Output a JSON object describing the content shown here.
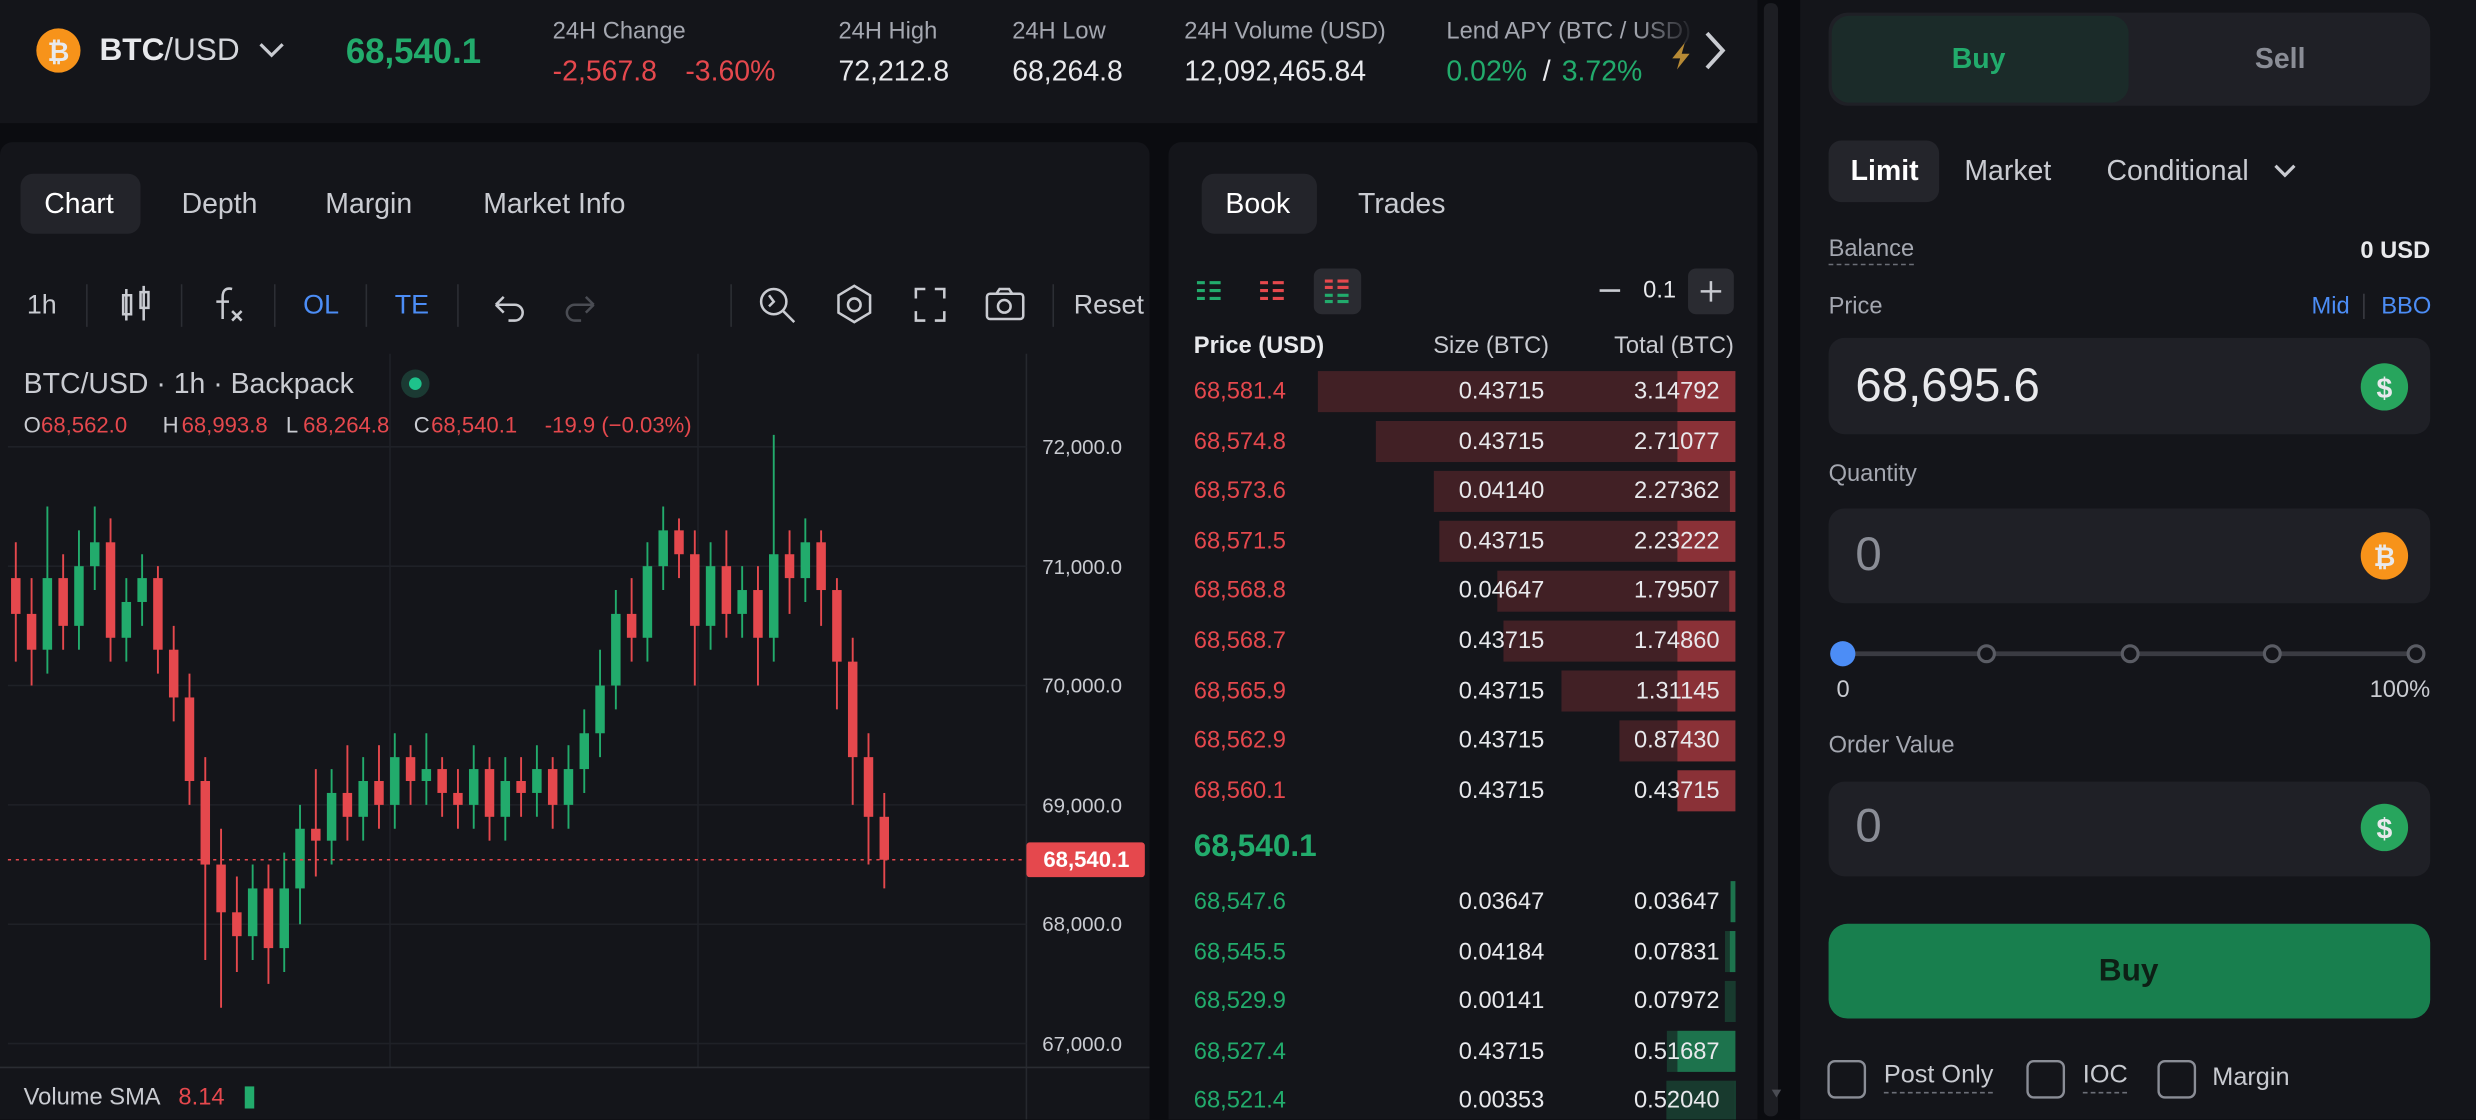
{
  "header": {
    "base": "BTC",
    "quote": "/USD",
    "last_price": "68,540.1",
    "change": {
      "label": "24H Change",
      "value": "-2,567.8",
      "percent": "-3.60%"
    },
    "high": {
      "label": "24H High",
      "value": "72,212.8"
    },
    "low": {
      "label": "24H Low",
      "value": "68,264.8"
    },
    "volume": {
      "label": "24H Volume (USD)",
      "value": "12,092,465.84"
    },
    "lend_apy": {
      "label": "Lend APY (BTC / USD)",
      "btc": "0.02%",
      "separator": "/",
      "usd": "3.72%"
    }
  },
  "chart_panel": {
    "tabs": [
      "Chart",
      "Depth",
      "Margin",
      "Market Info"
    ],
    "active_tab": "Chart",
    "toolbar": {
      "interval": "1h",
      "ol": "OL",
      "te": "TE",
      "reset": "Reset"
    },
    "legend": {
      "title": "BTC/USD · 1h · Backpack",
      "o_label": "O",
      "o": "68,562.0",
      "h_label": "H",
      "h": "68,993.8",
      "l_label": "L",
      "l": "68,264.8",
      "c_label": "C",
      "c": "68,540.1",
      "change": "-19.9 (−0.03%)"
    },
    "volume_sma": {
      "label": "Volume SMA",
      "value": "8.14"
    }
  },
  "chart_data": {
    "type": "candlestick",
    "open": [
      70900,
      70600,
      70300,
      70900,
      70500,
      71000,
      71200,
      70400,
      70700,
      70900,
      70300,
      69900,
      69200,
      68500,
      68100,
      67900,
      68300,
      67800,
      68300,
      68800,
      68700,
      69100,
      68900,
      69200,
      69000,
      69400,
      69200,
      69300,
      69100,
      69000,
      69300,
      68900,
      69200,
      69100,
      69300,
      69000,
      69300,
      69600,
      70000,
      70600,
      70400,
      71000,
      71300,
      71100,
      70500,
      71000,
      70600,
      70800,
      70400,
      71100,
      70900,
      71200,
      70800,
      70200,
      69400,
      68900
    ],
    "high": [
      71200,
      70900,
      71500,
      71100,
      71300,
      71500,
      71400,
      70900,
      71100,
      71000,
      70500,
      70100,
      69400,
      68800,
      68400,
      68500,
      68500,
      68600,
      69000,
      69300,
      69300,
      69500,
      69400,
      69500,
      69600,
      69500,
      69600,
      69400,
      69300,
      69500,
      69400,
      69400,
      69400,
      69500,
      69400,
      69500,
      69800,
      70300,
      70800,
      70900,
      71200,
      71500,
      71400,
      71300,
      71200,
      71300,
      71000,
      71000,
      72100,
      71300,
      71400,
      71300,
      70900,
      70400,
      69600,
      69100
    ],
    "low": [
      70200,
      70000,
      70100,
      70300,
      70300,
      70800,
      70200,
      70200,
      70500,
      70100,
      69700,
      69000,
      67700,
      67300,
      67600,
      67700,
      67500,
      67600,
      68000,
      68400,
      68500,
      68700,
      68700,
      68800,
      68800,
      69000,
      69000,
      68900,
      68800,
      68800,
      68700,
      68700,
      68900,
      68900,
      68800,
      68800,
      69100,
      69400,
      69800,
      70200,
      70200,
      70800,
      70900,
      70000,
      70300,
      70400,
      70400,
      70000,
      70200,
      70600,
      70700,
      70500,
      69800,
      69000,
      68500,
      68300
    ],
    "close": [
      70600,
      70300,
      70900,
      70500,
      71000,
      71200,
      70400,
      70700,
      70900,
      70300,
      69900,
      69200,
      68500,
      68100,
      67900,
      68300,
      67800,
      68300,
      68800,
      68700,
      69100,
      68900,
      69200,
      69000,
      69400,
      69200,
      69300,
      69100,
      69000,
      69300,
      68900,
      69200,
      69100,
      69300,
      69000,
      69300,
      69600,
      70000,
      70600,
      70400,
      71000,
      71300,
      71100,
      70500,
      71000,
      70600,
      70800,
      70400,
      71100,
      70900,
      71200,
      70800,
      70200,
      69400,
      68900,
      68540
    ],
    "ylim": [
      66800,
      72780
    ],
    "yticks": [
      {
        "value": 72000,
        "label": "72,000.0"
      },
      {
        "value": 71000,
        "label": "71,000.0"
      },
      {
        "value": 70000,
        "label": "70,000.0"
      },
      {
        "value": 69000,
        "label": "69,000.0"
      },
      {
        "value": 68000,
        "label": "68,000.0"
      },
      {
        "value": 67000,
        "label": "67,000.0"
      }
    ],
    "last_price": {
      "value": 68540.1,
      "label": "68,540.1"
    },
    "up_color": "#22ab6c",
    "down_color": "#e5484d",
    "grid": true
  },
  "orderbook": {
    "tabs": [
      "Book",
      "Trades"
    ],
    "active_tab": "Book",
    "step": "0.1",
    "columns": [
      "Price (USD)",
      "Size (BTC)",
      "Total (BTC)"
    ],
    "asks": [
      {
        "price": "68,581.4",
        "size": "0.43715",
        "total": "3.14792"
      },
      {
        "price": "68,574.8",
        "size": "0.43715",
        "total": "2.71077"
      },
      {
        "price": "68,573.6",
        "size": "0.04140",
        "total": "2.27362"
      },
      {
        "price": "68,571.5",
        "size": "0.43715",
        "total": "2.23222"
      },
      {
        "price": "68,568.8",
        "size": "0.04647",
        "total": "1.79507"
      },
      {
        "price": "68,568.7",
        "size": "0.43715",
        "total": "1.74860"
      },
      {
        "price": "68,565.9",
        "size": "0.43715",
        "total": "1.31145"
      },
      {
        "price": "68,562.9",
        "size": "0.43715",
        "total": "0.87430"
      },
      {
        "price": "68,560.1",
        "size": "0.43715",
        "total": "0.43715"
      }
    ],
    "mid": "68,540.1",
    "bids": [
      {
        "price": "68,547.6",
        "size": "0.03647",
        "total": "0.03647"
      },
      {
        "price": "68,545.5",
        "size": "0.04184",
        "total": "0.07831"
      },
      {
        "price": "68,529.9",
        "size": "0.00141",
        "total": "0.07972"
      },
      {
        "price": "68,527.4",
        "size": "0.43715",
        "total": "0.51687"
      },
      {
        "price": "68,521.4",
        "size": "0.00353",
        "total": "0.52040"
      }
    ]
  },
  "order_form": {
    "sides": [
      "Buy",
      "Sell"
    ],
    "active_side": "Buy",
    "order_types": [
      "Limit",
      "Market",
      "Conditional"
    ],
    "active_type": "Limit",
    "balance_label": "Balance",
    "balance": "0 USD",
    "price_label": "Price",
    "mid": "Mid",
    "bbo": "BBO",
    "price": "68,695.6",
    "quantity_label": "Quantity",
    "quantity": "0",
    "slider_min": "0",
    "slider_max": "100%",
    "order_value_label": "Order Value",
    "order_value": "0",
    "submit": "Buy",
    "options": [
      "Post Only",
      "IOC",
      "Margin"
    ]
  },
  "icons": {
    "usd": "$",
    "btc": "₿"
  }
}
